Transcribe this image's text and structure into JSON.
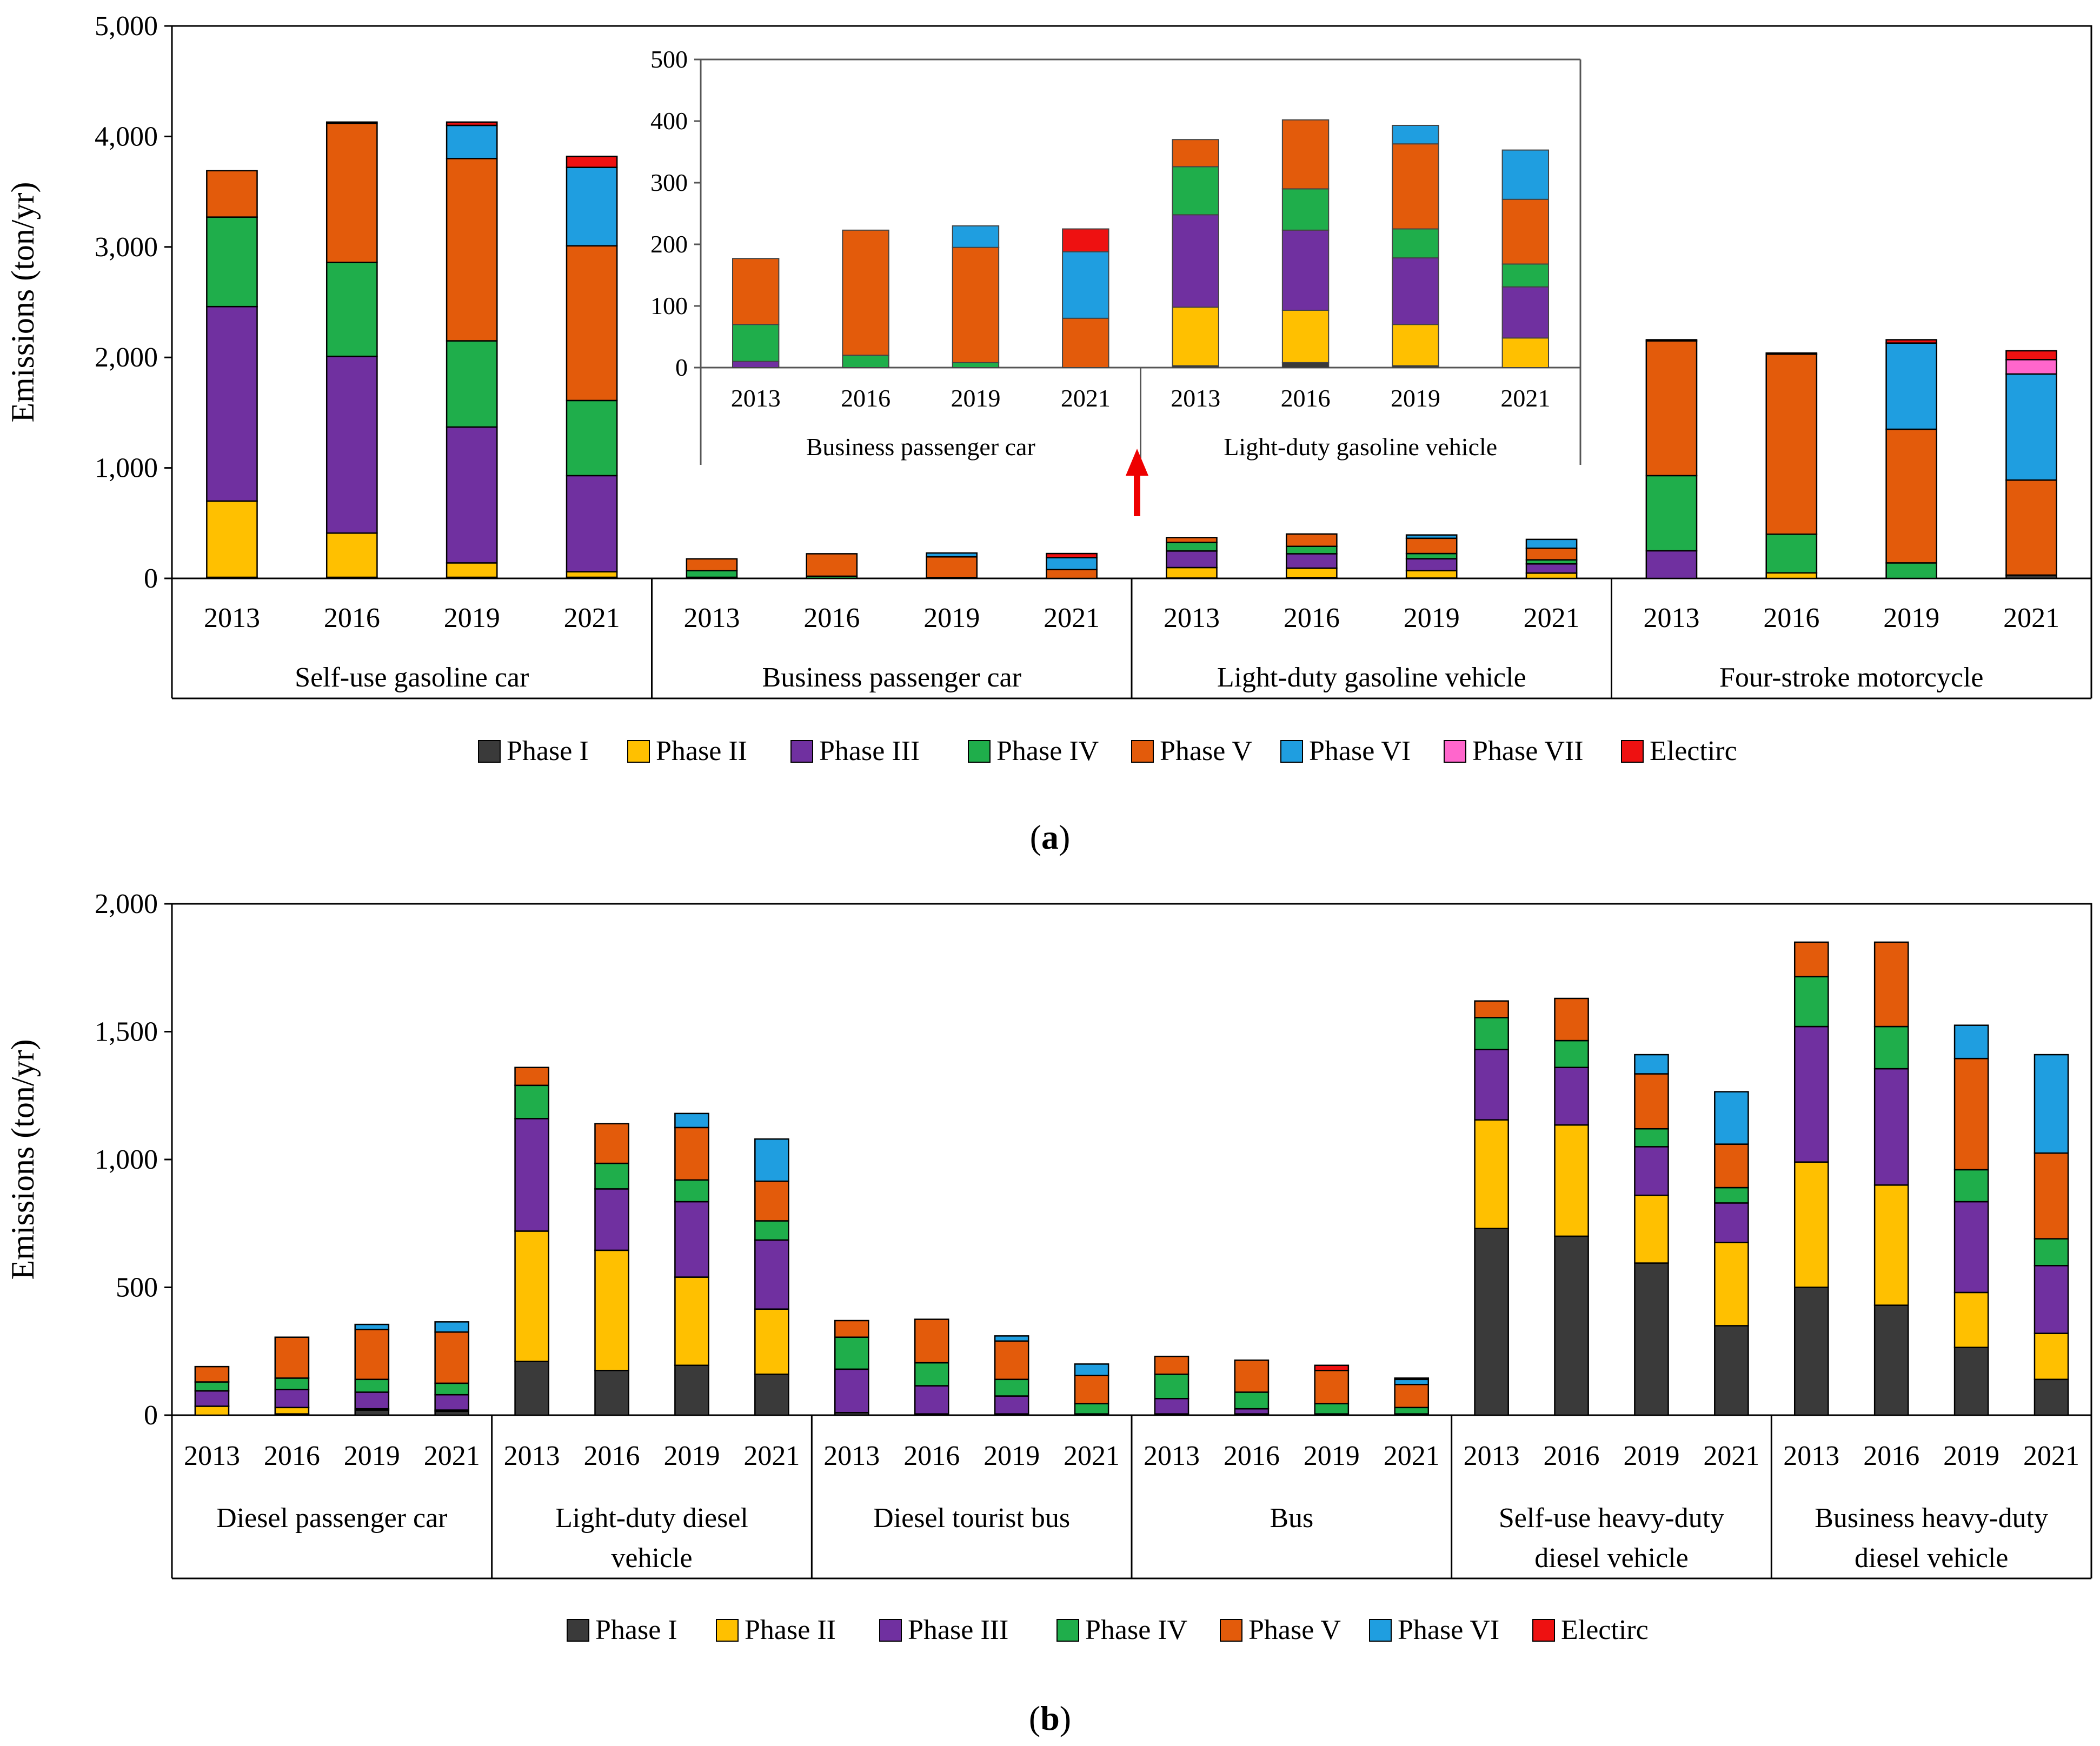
{
  "colors": {
    "Phase I": "#3a3a3a",
    "Phase II": "#ffc000",
    "Phase III": "#7030a0",
    "Phase IV": "#1fae4b",
    "Phase V": "#e35b0b",
    "Phase VI": "#1f9ee0",
    "Phase VII": "#ff66cc",
    "Electirc": "#ee1111"
  },
  "panel_labels": [
    "a",
    "b"
  ],
  "chart_data": [
    {
      "id": "a",
      "type": "stacked-bar",
      "ylabel": "Emissions (ton/yr)",
      "ylim": [
        0,
        5000
      ],
      "yticks": [
        0,
        1000,
        2000,
        3000,
        4000,
        5000
      ],
      "ytick_labels": [
        "0",
        "1,000",
        "2,000",
        "3,000",
        "4,000",
        "5,000"
      ],
      "series_names": [
        "Phase I",
        "Phase II",
        "Phase III",
        "Phase IV",
        "Phase V",
        "Phase VI",
        "Phase VII",
        "Electirc"
      ],
      "legend": [
        "Phase I",
        "Phase II",
        "Phase III",
        "Phase IV",
        "Phase V",
        "Phase VI",
        "Phase VII",
        "Electirc"
      ],
      "groups": [
        {
          "name": "Self-use gasoline car",
          "years": [
            "2013",
            "2016",
            "2019",
            "2021"
          ],
          "stacks": [
            [
              10,
              690,
              1760,
              810,
              420,
              0,
              0,
              0
            ],
            [
              10,
              400,
              1600,
              850,
              1260,
              0,
              0,
              10
            ],
            [
              10,
              130,
              1230,
              780,
              1650,
              300,
              0,
              30
            ],
            [
              10,
              50,
              870,
              680,
              1400,
              710,
              0,
              100
            ]
          ]
        },
        {
          "name": "Business passenger car",
          "years": [
            "2013",
            "2016",
            "2019",
            "2021"
          ],
          "stacks": [
            [
              0,
              0,
              10,
              60,
              107,
              0,
              0,
              0
            ],
            [
              0,
              0,
              0,
              20,
              203,
              0,
              0,
              0
            ],
            [
              0,
              0,
              0,
              8,
              187,
              35,
              0,
              0
            ],
            [
              0,
              0,
              0,
              0,
              80,
              108,
              0,
              37
            ]
          ]
        },
        {
          "name": "Light-duty gasoline vehicle",
          "years": [
            "2013",
            "2016",
            "2019",
            "2021"
          ],
          "stacks": [
            [
              3,
              95,
              150,
              78,
              44,
              0,
              0,
              0
            ],
            [
              8,
              85,
              130,
              67,
              112,
              0,
              0,
              0
            ],
            [
              3,
              67,
              108,
              47,
              138,
              30,
              0,
              0
            ],
            [
              0,
              48,
              83,
              37,
              105,
              80,
              0,
              0
            ]
          ]
        },
        {
          "name": "Four-stroke motorcycle",
          "years": [
            "2013",
            "2016",
            "2019",
            "2021"
          ],
          "stacks": [
            [
              0,
              0,
              250,
              680,
              1220,
              0,
              0,
              10
            ],
            [
              0,
              50,
              0,
              350,
              1630,
              0,
              0,
              10
            ],
            [
              0,
              0,
              0,
              140,
              1210,
              780,
              0,
              30
            ],
            [
              30,
              0,
              0,
              0,
              860,
              960,
              130,
              80
            ]
          ]
        }
      ],
      "inset": {
        "ylim": [
          0,
          500
        ],
        "yticks": [
          0,
          100,
          200,
          300,
          400,
          500
        ],
        "ytick_labels": [
          "0",
          "100",
          "200",
          "300",
          "400",
          "500"
        ],
        "groups": [
          {
            "name": "Business passenger car",
            "years": [
              "2013",
              "2016",
              "2019",
              "2021"
            ],
            "stacks": [
              [
                0,
                0,
                10,
                60,
                107,
                0,
                0,
                0
              ],
              [
                0,
                0,
                0,
                20,
                203,
                0,
                0,
                0
              ],
              [
                0,
                0,
                0,
                8,
                187,
                35,
                0,
                0
              ],
              [
                0,
                0,
                0,
                0,
                80,
                108,
                0,
                37
              ]
            ]
          },
          {
            "name": "Light-duty gasoline vehicle",
            "years": [
              "2013",
              "2016",
              "2019",
              "2021"
            ],
            "stacks": [
              [
                3,
                95,
                150,
                78,
                44,
                0,
                0,
                0
              ],
              [
                8,
                85,
                130,
                67,
                112,
                0,
                0,
                0
              ],
              [
                3,
                67,
                108,
                47,
                138,
                30,
                0,
                0
              ],
              [
                0,
                48,
                83,
                37,
                105,
                80,
                0,
                0
              ]
            ]
          }
        ]
      }
    },
    {
      "id": "b",
      "type": "stacked-bar",
      "ylabel": "Emissions (ton/yr)",
      "ylim": [
        0,
        2000
      ],
      "yticks": [
        0,
        500,
        1000,
        1500,
        2000
      ],
      "ytick_labels": [
        "0",
        "500",
        "1,000",
        "1,500",
        "2,000"
      ],
      "series_names": [
        "Phase I",
        "Phase II",
        "Phase III",
        "Phase IV",
        "Phase V",
        "Phase VI",
        "Electirc"
      ],
      "legend": [
        "Phase I",
        "Phase II",
        "Phase III",
        "Phase IV",
        "Phase V",
        "Phase VI",
        "Electirc"
      ],
      "groups": [
        {
          "name": "Diesel passenger car",
          "years": [
            "2013",
            "2016",
            "2019",
            "2021"
          ],
          "stacks": [
            [
              0,
              35,
              60,
              35,
              60,
              0,
              0
            ],
            [
              5,
              25,
              70,
              45,
              160,
              0,
              0
            ],
            [
              20,
              5,
              65,
              50,
              195,
              20,
              0
            ],
            [
              15,
              5,
              60,
              45,
              200,
              40,
              0
            ]
          ]
        },
        {
          "name": "Light-duty diesel vehicle",
          "years": [
            "2013",
            "2016",
            "2019",
            "2021"
          ],
          "stacks": [
            [
              210,
              510,
              440,
              130,
              70,
              0,
              0
            ],
            [
              175,
              470,
              240,
              100,
              155,
              0,
              0
            ],
            [
              195,
              345,
              295,
              85,
              205,
              55,
              0
            ],
            [
              160,
              255,
              270,
              75,
              155,
              165,
              0
            ]
          ]
        },
        {
          "name": "Diesel tourist bus",
          "years": [
            "2013",
            "2016",
            "2019",
            "2021"
          ],
          "stacks": [
            [
              10,
              0,
              170,
              125,
              65,
              0,
              0
            ],
            [
              5,
              0,
              110,
              90,
              170,
              0,
              0
            ],
            [
              5,
              0,
              70,
              65,
              150,
              20,
              0
            ],
            [
              0,
              0,
              5,
              40,
              110,
              45,
              0
            ]
          ]
        },
        {
          "name": "Bus",
          "years": [
            "2013",
            "2016",
            "2019",
            "2021"
          ],
          "stacks": [
            [
              5,
              0,
              60,
              95,
              70,
              0,
              0
            ],
            [
              5,
              0,
              20,
              65,
              125,
              0,
              0
            ],
            [
              5,
              0,
              0,
              40,
              130,
              0,
              20
            ],
            [
              5,
              0,
              0,
              25,
              90,
              20,
              5
            ]
          ]
        },
        {
          "name": "Self-use heavy-duty diesel vehicle",
          "years": [
            "2013",
            "2016",
            "2019",
            "2021"
          ],
          "stacks": [
            [
              730,
              425,
              275,
              125,
              65,
              0,
              0
            ],
            [
              700,
              435,
              225,
              105,
              165,
              0,
              0
            ],
            [
              595,
              265,
              190,
              70,
              215,
              75,
              0
            ],
            [
              350,
              325,
              155,
              60,
              170,
              205,
              0
            ]
          ]
        },
        {
          "name": "Business heavy-duty diesel vehicle",
          "years": [
            "2013",
            "2016",
            "2019",
            "2021"
          ],
          "stacks": [
            [
              500,
              490,
              530,
              195,
              135,
              0,
              0
            ],
            [
              430,
              470,
              455,
              165,
              330,
              0,
              0
            ],
            [
              265,
              215,
              355,
              125,
              435,
              130,
              0
            ],
            [
              140,
              180,
              265,
              105,
              335,
              385,
              0
            ]
          ]
        }
      ]
    }
  ]
}
